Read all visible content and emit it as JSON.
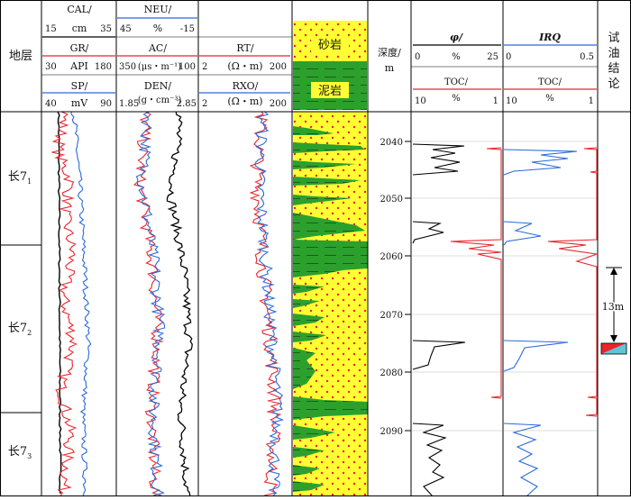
{
  "columns": {
    "stratum": {
      "header": "地层",
      "zones": [
        {
          "label": "长7",
          "sub": "1"
        },
        {
          "label": "长7",
          "sub": "2"
        },
        {
          "label": "长7",
          "sub": "3"
        }
      ]
    },
    "track1": {
      "rows": [
        {
          "curve": "CAL/",
          "unit": "cm",
          "min": "15",
          "max": "35",
          "color": "#000000"
        },
        {
          "curve": "GR/",
          "unit": "API",
          "min": "30",
          "max": "180",
          "color": "#e8242c"
        },
        {
          "curve": "SP/",
          "unit": "mV",
          "min": "40",
          "max": "90",
          "color": "#2a6ad9"
        }
      ]
    },
    "track2": {
      "rows": [
        {
          "curve": "NEU/",
          "unit": "%",
          "min": "45",
          "max": "-15",
          "color": "#2a6ad9"
        },
        {
          "curve": "AC/",
          "unit": "(μs・m⁻¹)",
          "min": "350",
          "max": "100",
          "color": "#e8242c"
        },
        {
          "curve": "DEN/",
          "unit": "(g・cm⁻³)",
          "min": "1.85",
          "max": "2.85",
          "color": "#000000"
        }
      ]
    },
    "track3": {
      "rows": [
        {
          "curve": "RT/",
          "unit": "(Ω・m)",
          "min": "2",
          "max": "200",
          "color": "#e8242c"
        },
        {
          "curve": "RXO/",
          "unit": "(Ω・m)",
          "min": "2",
          "max": "200",
          "color": "#2a6ad9"
        }
      ]
    },
    "lithology": {
      "sandstone": "砂岩",
      "mudstone": "泥岩",
      "sand_color": "#ffff33",
      "mud_color": "#2ca02c",
      "dot_color": "#e8242c"
    },
    "depth": {
      "header": "深度/",
      "unit": "m",
      "ticks": [
        "2040",
        "2050",
        "2060",
        "2070",
        "2080",
        "2090"
      ]
    },
    "phi_track": {
      "top": {
        "curve": "φ/",
        "unit": "%",
        "min": "0",
        "max": "25",
        "color": "#000000"
      },
      "bottom": {
        "curve": "TOC/",
        "unit": "%",
        "min": "10",
        "max": "1",
        "color": "#e8242c"
      }
    },
    "irq_track": {
      "top": {
        "curve": "IRQ",
        "min": "0",
        "max": "0.5",
        "color": "#2a6ad9"
      },
      "bottom": {
        "curve": "TOC/",
        "unit": "%",
        "min": "10",
        "max": "1",
        "color": "#e8242c"
      }
    },
    "test": {
      "header_chars": [
        "试",
        "油",
        "结",
        "论"
      ],
      "interval": "13m"
    }
  }
}
